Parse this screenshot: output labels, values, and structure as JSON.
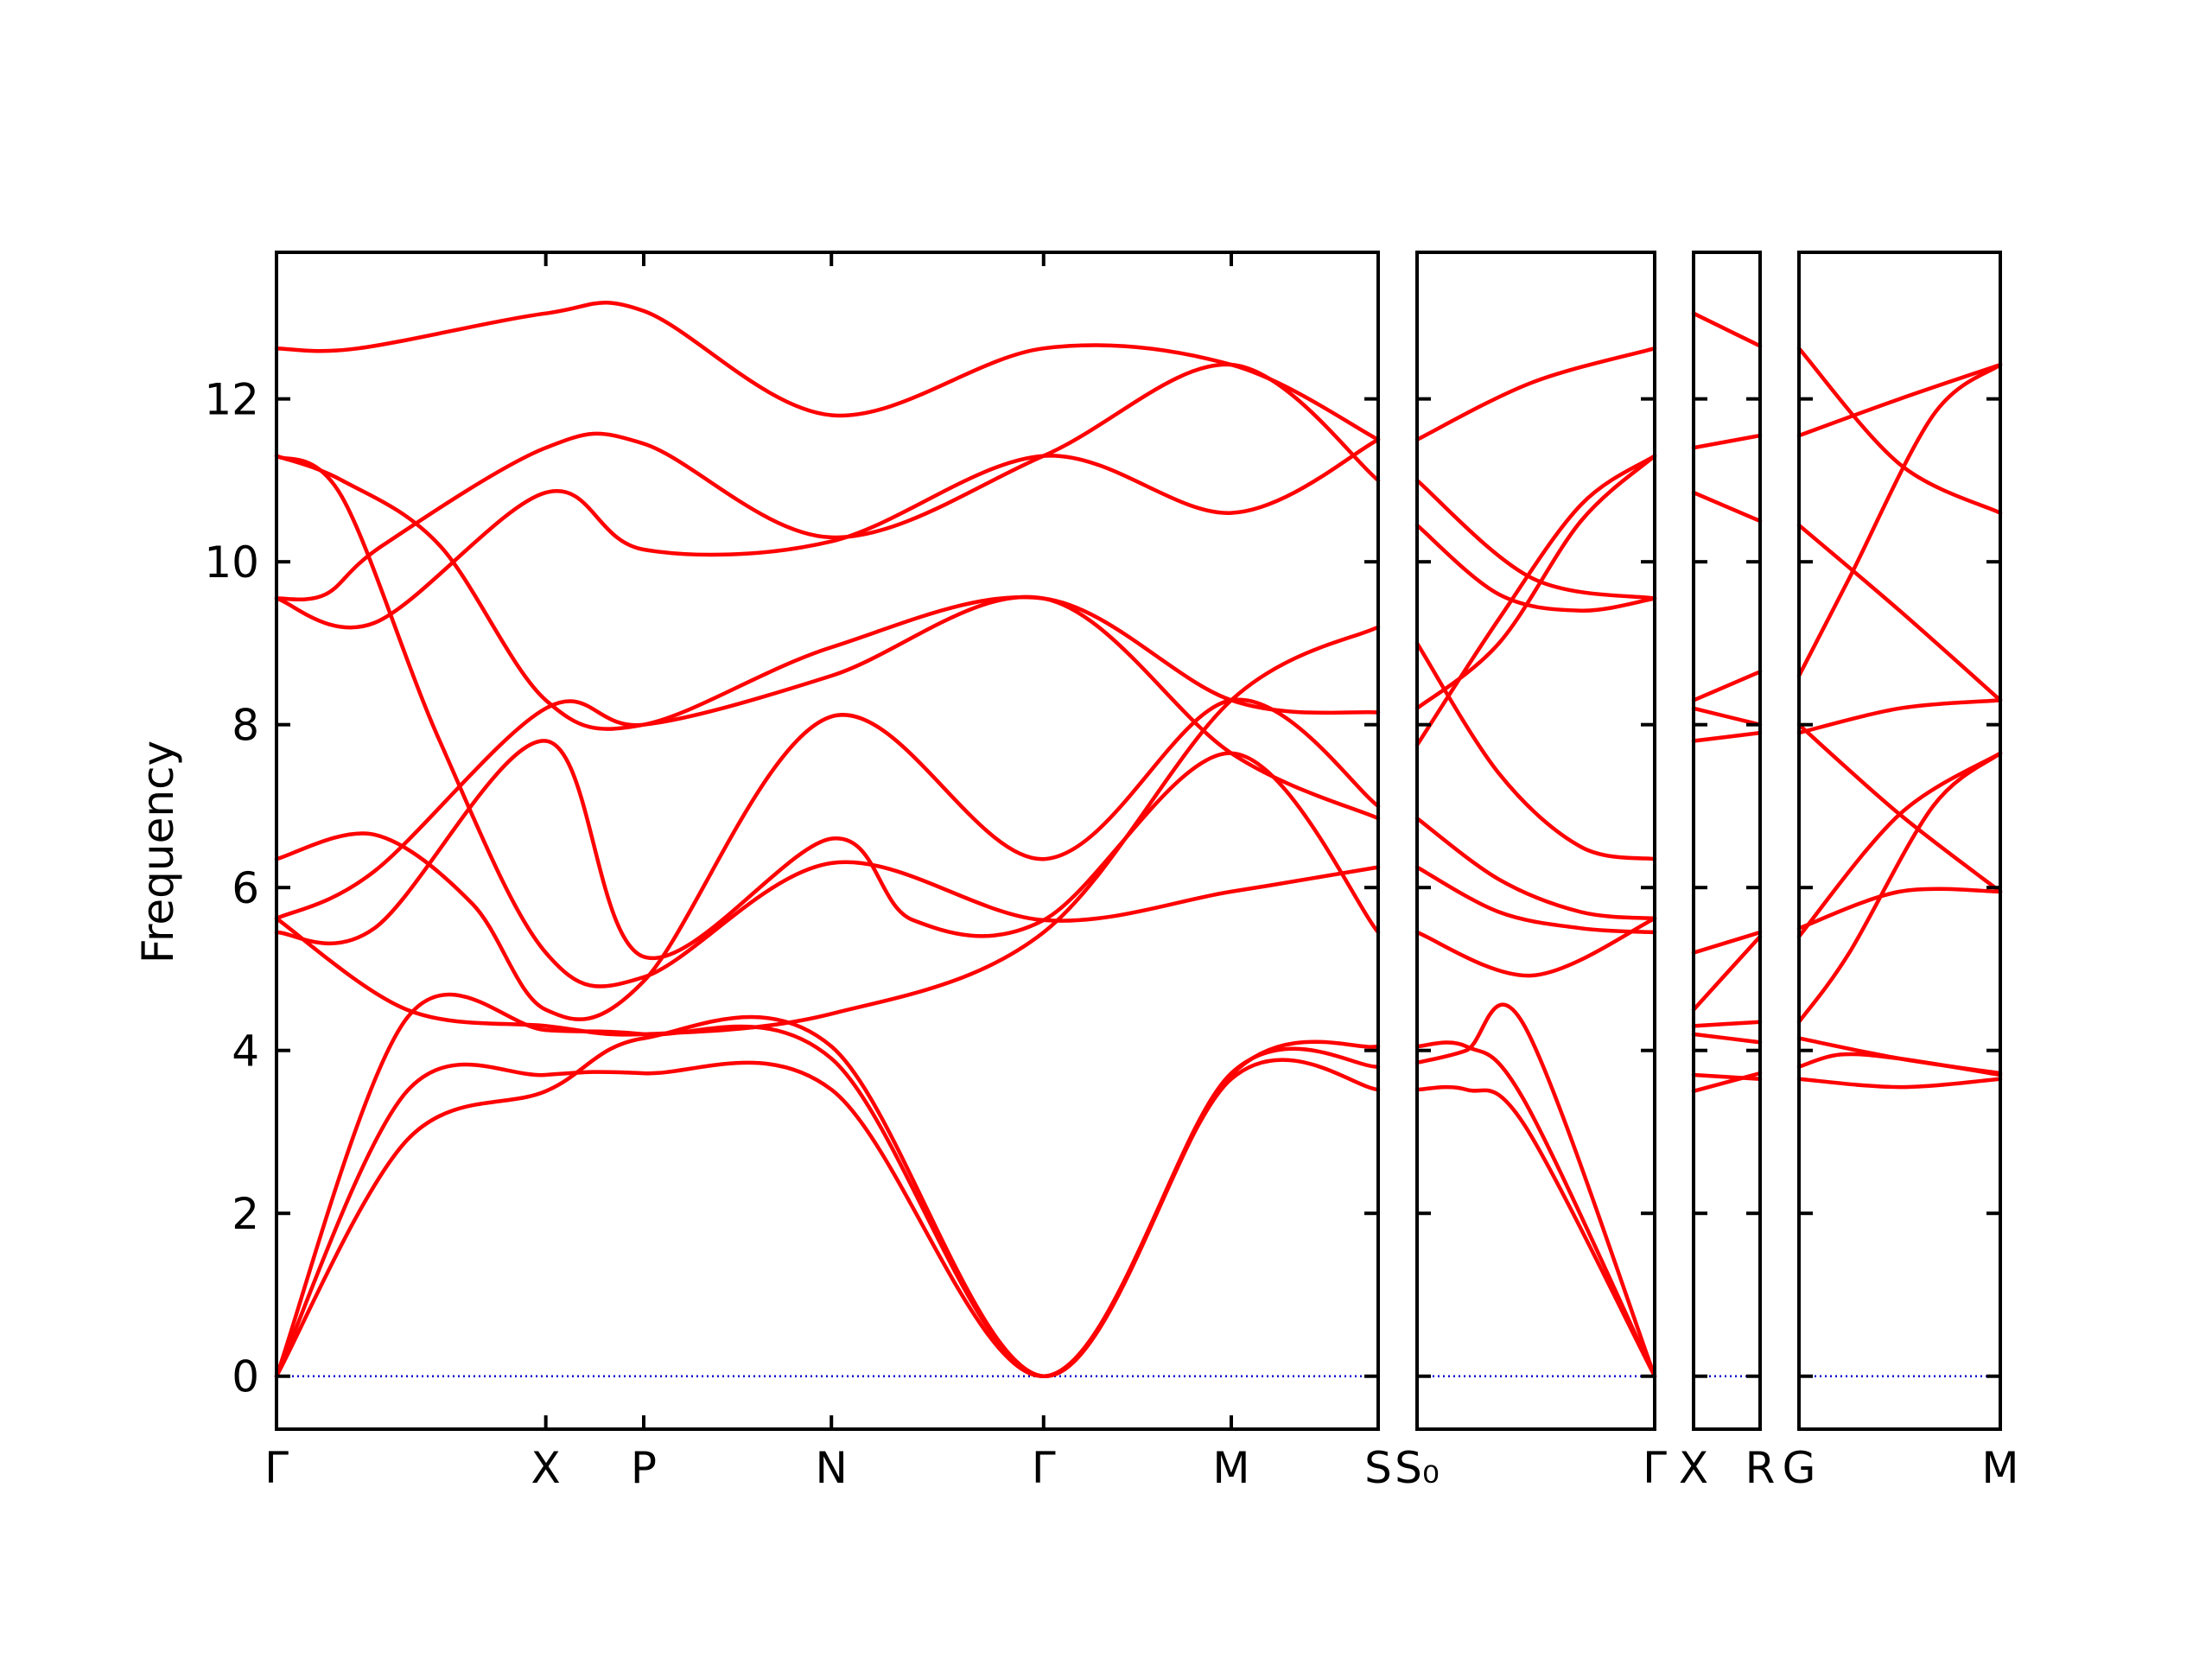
{
  "chart_data": {
    "type": "line",
    "ylabel": "Frequency",
    "ylim": [
      -0.65,
      13.8
    ],
    "yticks": [
      0,
      2,
      4,
      6,
      8,
      10,
      12
    ],
    "grid": false,
    "colors": {
      "bands": "#ff0000",
      "zero_line": "#0000cc",
      "frame": "#000000"
    },
    "panels": [
      {
        "xrange": [
          0,
          6.75
        ],
        "xticks": [
          {
            "x": 0,
            "label": "Γ"
          },
          {
            "x": 1.65,
            "label": "X"
          },
          {
            "x": 2.25,
            "label": "P"
          },
          {
            "x": 3.4,
            "label": "N"
          },
          {
            "x": 4.7,
            "label": "Γ"
          },
          {
            "x": 5.85,
            "label": "M"
          },
          {
            "x": 6.75,
            "label": "S"
          }
        ],
        "series": [
          {
            "x": [
              0,
              0.5,
              1.65,
              2.25,
              3.4,
              4.7,
              5.85,
              6.75
            ],
            "y": [
              12.62,
              12.62,
              13.05,
              13.08,
              11.8,
              12.62,
              12.42,
              11.5
            ]
          },
          {
            "x": [
              0,
              0.4,
              1.0,
              1.65,
              2.25,
              3.4,
              4.7,
              5.85,
              6.75
            ],
            "y": [
              11.3,
              11.0,
              10.2,
              8.3,
              8.0,
              8.95,
              9.55,
              8.3,
              8.15
            ]
          },
          {
            "x": [
              0,
              0.4,
              1.0,
              1.65,
              2.25,
              3.4,
              4.7,
              5.85,
              6.75
            ],
            "y": [
              11.3,
              10.8,
              7.8,
              5.2,
              4.9,
              6.3,
              5.6,
              5.95,
              6.25
            ]
          },
          {
            "x": [
              0,
              0.3,
              0.65,
              1.65,
              2.25,
              3.4,
              4.7,
              5.85,
              6.75
            ],
            "y": [
              9.55,
              9.6,
              10.2,
              11.4,
              11.45,
              10.3,
              11.3,
              12.42,
              11.0
            ]
          },
          {
            "x": [
              0,
              0.6,
              1.65,
              2.25,
              3.4,
              4.7,
              5.85,
              6.75
            ],
            "y": [
              9.55,
              9.25,
              10.85,
              10.15,
              10.25,
              11.3,
              10.6,
              11.5
            ]
          },
          {
            "x": [
              0,
              0.6,
              1.2,
              1.65,
              2.25,
              3.4,
              4.7,
              5.85,
              6.75
            ],
            "y": [
              6.35,
              6.65,
              5.8,
              4.5,
              4.85,
              8.1,
              6.35,
              8.3,
              7.0
            ]
          },
          {
            "x": [
              0,
              0.6,
              1.65,
              2.25,
              3.4,
              4.7,
              5.85,
              6.75
            ],
            "y": [
              5.62,
              6.2,
              8.2,
              8.0,
              8.6,
              9.55,
              7.65,
              6.85
            ]
          },
          {
            "x": [
              0,
              0.6,
              1.65,
              2.25,
              3.4,
              3.9,
              4.7,
              5.85,
              6.75
            ],
            "y": [
              5.45,
              5.5,
              7.8,
              5.15,
              6.6,
              5.6,
              5.6,
              7.65,
              5.45
            ]
          },
          {
            "x": [
              0,
              0.8,
              1.65,
              2.25,
              3.4,
              4.7,
              5.85,
              6.75
            ],
            "y": [
              5.62,
              4.5,
              4.3,
              4.2,
              4.45,
              5.45,
              8.3,
              9.2
            ]
          },
          {
            "x": [
              0,
              0.8,
              1.65,
              2.25,
              3.4,
              4.7,
              5.85,
              6.75
            ],
            "y": [
              0,
              4.4,
              4.25,
              4.2,
              3.9,
              0,
              3.7,
              4.05
            ]
          },
          {
            "x": [
              0,
              0.8,
              1.65,
              2.25,
              3.4,
              4.7,
              5.85,
              6.75
            ],
            "y": [
              0,
              3.5,
              3.7,
              3.72,
              3.52,
              0,
              3.65,
              3.52
            ]
          },
          {
            "x": [
              0,
              0.8,
              1.65,
              2.25,
              3.4,
              4.7,
              5.85,
              6.75
            ],
            "y": [
              0,
              2.9,
              3.5,
              4.15,
              4.05,
              0,
              3.72,
              3.8
            ]
          }
        ]
      },
      {
        "xrange": [
          0,
          1.45
        ],
        "xticks": [
          {
            "x": 0,
            "label": "S₀"
          },
          {
            "x": 1.45,
            "label": "Γ"
          }
        ],
        "series": [
          {
            "x": [
              0,
              0.7,
              1.45
            ],
            "y": [
              11.5,
              12.2,
              12.62
            ]
          },
          {
            "x": [
              0,
              0.7,
              1.45
            ],
            "y": [
              11.0,
              9.8,
              9.55
            ]
          },
          {
            "x": [
              0,
              0.5,
              1.0,
              1.45
            ],
            "y": [
              10.45,
              9.6,
              9.4,
              9.55
            ]
          },
          {
            "x": [
              0,
              0.5,
              1.0,
              1.45
            ],
            "y": [
              9.0,
              7.4,
              6.5,
              6.35
            ]
          },
          {
            "x": [
              0,
              0.5,
              1.0,
              1.45
            ],
            "y": [
              8.2,
              9.0,
              10.5,
              11.3
            ]
          },
          {
            "x": [
              0,
              0.5,
              1.0,
              1.45
            ],
            "y": [
              7.75,
              9.3,
              10.7,
              11.3
            ]
          },
          {
            "x": [
              0,
              0.5,
              1.0,
              1.45
            ],
            "y": [
              6.85,
              6.1,
              5.7,
              5.62
            ]
          },
          {
            "x": [
              0,
              0.5,
              1.0,
              1.45
            ],
            "y": [
              6.25,
              5.7,
              5.5,
              5.45
            ]
          },
          {
            "x": [
              0,
              0.7,
              1.45
            ],
            "y": [
              5.45,
              4.92,
              5.62
            ]
          },
          {
            "x": [
              0,
              0.3,
              0.65,
              1.45
            ],
            "y": [
              3.85,
              4.0,
              4.32,
              0
            ]
          },
          {
            "x": [
              0,
              0.3,
              0.65,
              1.45
            ],
            "y": [
              4.05,
              4.05,
              3.4,
              0
            ]
          },
          {
            "x": [
              0,
              0.3,
              0.65,
              1.45
            ],
            "y": [
              3.52,
              3.52,
              3.1,
              0
            ]
          }
        ]
      },
      {
        "xrange": [
          0,
          0.4
        ],
        "xticks": [
          {
            "x": 0,
            "label": "X"
          },
          {
            "x": 0.4,
            "label": "R"
          }
        ],
        "series": [
          {
            "x": [
              0,
              0.4
            ],
            "y": [
              13.05,
              12.65
            ]
          },
          {
            "x": [
              0,
              0.4
            ],
            "y": [
              11.4,
              11.55
            ]
          },
          {
            "x": [
              0,
              0.4
            ],
            "y": [
              10.85,
              10.5
            ]
          },
          {
            "x": [
              0,
              0.4
            ],
            "y": [
              8.3,
              8.65
            ]
          },
          {
            "x": [
              0,
              0.4
            ],
            "y": [
              8.2,
              8.0
            ]
          },
          {
            "x": [
              0,
              0.4
            ],
            "y": [
              7.8,
              7.9
            ]
          },
          {
            "x": [
              0,
              0.4
            ],
            "y": [
              5.2,
              5.45
            ]
          },
          {
            "x": [
              0,
              0.4
            ],
            "y": [
              4.5,
              5.4
            ]
          },
          {
            "x": [
              0,
              0.4
            ],
            "y": [
              4.3,
              4.35
            ]
          },
          {
            "x": [
              0,
              0.4
            ],
            "y": [
              4.2,
              4.1
            ]
          },
          {
            "x": [
              0,
              0.4
            ],
            "y": [
              3.7,
              3.65
            ]
          },
          {
            "x": [
              0,
              0.4
            ],
            "y": [
              3.5,
              3.72
            ]
          }
        ]
      },
      {
        "xrange": [
          0,
          1.2
        ],
        "xticks": [
          {
            "x": 0,
            "label": "G"
          },
          {
            "x": 1.2,
            "label": "M"
          }
        ],
        "series": [
          {
            "x": [
              0,
              0.6,
              1.2
            ],
            "y": [
              12.62,
              11.2,
              10.6
            ]
          },
          {
            "x": [
              0,
              0.6,
              1.2
            ],
            "y": [
              11.55,
              12.0,
              12.42
            ]
          },
          {
            "x": [
              0,
              0.6,
              1.2
            ],
            "y": [
              10.45,
              9.4,
              8.3
            ]
          },
          {
            "x": [
              0,
              0.3,
              0.8,
              1.2
            ],
            "y": [
              8.6,
              9.8,
              11.8,
              12.42
            ]
          },
          {
            "x": [
              0,
              0.6,
              1.2
            ],
            "y": [
              7.9,
              8.2,
              8.3
            ]
          },
          {
            "x": [
              0,
              0.6,
              1.2
            ],
            "y": [
              8.0,
              6.9,
              5.95
            ]
          },
          {
            "x": [
              0,
              0.6,
              1.2
            ],
            "y": [
              5.4,
              6.9,
              7.65
            ]
          },
          {
            "x": [
              0,
              0.6,
              1.2
            ],
            "y": [
              5.5,
              5.95,
              5.95
            ]
          },
          {
            "x": [
              0,
              0.3,
              0.8,
              1.2
            ],
            "y": [
              4.35,
              5.2,
              7.0,
              7.65
            ]
          },
          {
            "x": [
              0,
              0.6,
              1.2
            ],
            "y": [
              4.15,
              3.9,
              3.72
            ]
          },
          {
            "x": [
              0,
              0.25,
              0.6,
              1.2
            ],
            "y": [
              3.8,
              3.95,
              3.9,
              3.7
            ]
          },
          {
            "x": [
              0,
              0.6,
              1.2
            ],
            "y": [
              3.65,
              3.55,
              3.65
            ]
          }
        ]
      }
    ]
  }
}
